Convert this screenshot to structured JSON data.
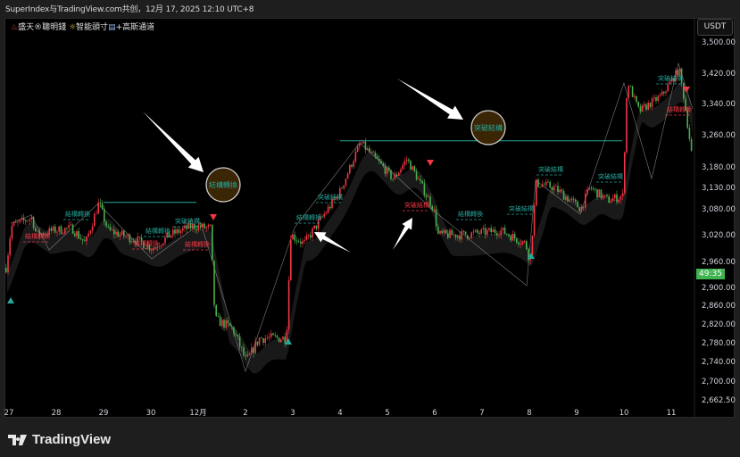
{
  "header": {
    "attribution": "SuperIndex与TradingView.com共创，12月 17, 2025 12:10 UTC+8"
  },
  "legend": {
    "prefix_icon": "hot-springs-icon",
    "name1": "盛天®聰明錢",
    "mid_icon": "sun-icon",
    "name2": "智能頭寸",
    "suffix_icon": "bar-icon",
    "name3": "+高斯通道"
  },
  "currency_button": "USDT",
  "countdown": "49:35",
  "footer": {
    "brand": "TradingView"
  },
  "colors": {
    "up": "#f23645",
    "down": "#4caf50",
    "teal": "#26a69a",
    "bull_marker": "#26a69a",
    "bear_marker": "#f23645",
    "badge": "#3fb34f"
  },
  "chart_data": {
    "type": "candlestick",
    "scale": "log",
    "y_ticks": [
      "3,500.00",
      "3,420.00",
      "3,340.00",
      "3,260.00",
      "3,180.00",
      "3,130.00",
      "3,080.00",
      "3,020.00",
      "2,960.00",
      "2,900.00",
      "2,860.00",
      "2,820.00",
      "2,780.00",
      "2,740.00",
      "2,700.00",
      "2,662.50"
    ],
    "x_ticks": [
      "27",
      "28",
      "29",
      "30",
      "12月",
      "2",
      "3",
      "4",
      "5",
      "6",
      "7",
      "8",
      "9",
      "10",
      "11"
    ],
    "price_path": [
      [
        "27",
        2930
      ],
      [
        "27",
        3040
      ],
      [
        "27",
        3060
      ],
      [
        "28",
        3020
      ],
      [
        "28",
        3030
      ],
      [
        "28",
        3035
      ],
      [
        "29",
        3000
      ],
      [
        "29",
        3095
      ],
      [
        "29",
        3030
      ],
      [
        "30",
        3010
      ],
      [
        "30",
        2990
      ],
      [
        "12月",
        3020
      ],
      [
        "12月",
        3040
      ],
      [
        "12月",
        3035
      ],
      [
        "12月",
        2830
      ],
      [
        "2",
        2810
      ],
      [
        "2",
        2740
      ],
      [
        "2",
        2790
      ],
      [
        "3",
        2790
      ],
      [
        "3",
        3020
      ],
      [
        "3",
        3000
      ],
      [
        "4",
        3060
      ],
      [
        "4",
        3120
      ],
      [
        "4",
        3240
      ],
      [
        "5",
        3200
      ],
      [
        "5",
        3150
      ],
      [
        "5",
        3200
      ],
      [
        "6",
        3140
      ],
      [
        "6",
        3080
      ],
      [
        "6",
        3020
      ],
      [
        "7",
        3020
      ],
      [
        "7",
        3030
      ],
      [
        "8",
        3000
      ],
      [
        "8",
        2960
      ],
      [
        "8",
        3140
      ],
      [
        "9",
        3130
      ],
      [
        "9",
        3080
      ],
      [
        "9",
        3130
      ],
      [
        "10",
        3100
      ],
      [
        "10",
        3110
      ],
      [
        "10",
        3400
      ],
      [
        "11",
        3320
      ],
      [
        "11",
        3360
      ],
      [
        "11",
        3430
      ],
      [
        "11",
        3360
      ],
      [
        "11",
        3180
      ]
    ],
    "levels": [
      {
        "price": 3095,
        "from": "29",
        "to": "12月"
      },
      {
        "price": 3245,
        "from": "4",
        "to": "10"
      }
    ],
    "annotations": [
      {
        "text": "結構轉換",
        "color": "teal"
      },
      {
        "text": "結構轉換",
        "color": "red"
      },
      {
        "text": "結構轉換",
        "color": "teal"
      },
      {
        "text": "突破結構",
        "color": "teal"
      },
      {
        "text": "結構轉換",
        "color": "red"
      },
      {
        "text": "結構轉換",
        "color": "red"
      },
      {
        "text": "突破結構",
        "color": "teal"
      },
      {
        "text": "結構轉換",
        "color": "teal"
      },
      {
        "text": "突破結構",
        "color": "red"
      },
      {
        "text": "結構轉換",
        "color": "teal"
      },
      {
        "text": "突破結構",
        "color": "teal"
      },
      {
        "text": "突破結構",
        "color": "teal"
      },
      {
        "text": "突破結構",
        "color": "teal"
      },
      {
        "text": "突破結構",
        "color": "teal"
      },
      {
        "text": "結構轉換",
        "color": "red"
      }
    ],
    "callouts": [
      "結構轉換",
      "突破結構"
    ],
    "signals": [
      {
        "type": "buy"
      },
      {
        "type": "buy"
      },
      {
        "type": "buy"
      },
      {
        "type": "sell"
      },
      {
        "type": "sell"
      },
      {
        "type": "sell"
      }
    ]
  }
}
